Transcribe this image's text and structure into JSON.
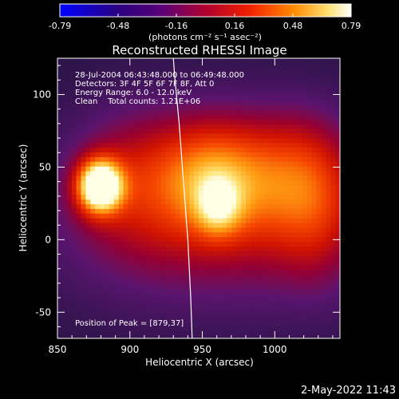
{
  "chart_data": {
    "type": "heatmap",
    "title": "Reconstructed RHESSI Image",
    "xlabel": "Heliocentric X (arcsec)",
    "ylabel": "Heliocentric Y (arcsec)",
    "xlim": [
      850,
      1045
    ],
    "ylim": [
      -68,
      125
    ],
    "x_ticks": [
      850,
      900,
      950,
      1000
    ],
    "y_ticks": [
      -50,
      0,
      50,
      100
    ],
    "info_lines": [
      "28-Jul-2004 06:43:48.000 to 06:49:48.000",
      "Detectors: 3F 4F 5F 6F 7F 8F, Att 0",
      "Energy Range: 6.0 - 12.0 keV",
      "Clean    Total counts: 1.21E+06"
    ],
    "peak_label": "Position of Peak = [879,37]",
    "peak": [
      879,
      37
    ],
    "colorbar": {
      "min": -0.79,
      "max": 0.79,
      "ticks": [
        "-0.79",
        "-0.48",
        "-0.16",
        "0.16",
        "0.48",
        "0.79"
      ],
      "unit": "(photons cm⁻² s⁻¹ asec⁻²)"
    },
    "limb_curve": [
      [
        943,
        -68
      ],
      [
        942,
        -40
      ],
      [
        940,
        0
      ],
      [
        937,
        40
      ],
      [
        934,
        80
      ],
      [
        931,
        112
      ],
      [
        930,
        125
      ]
    ],
    "sources": [
      {
        "x": 879,
        "y": 37,
        "sx": 11,
        "sy": 13,
        "amp": 1.0
      },
      {
        "x": 961,
        "y": 22,
        "sx": 11,
        "sy": 14,
        "amp": 0.32
      },
      {
        "x": 955,
        "y": 45,
        "sx": 24,
        "sy": 28,
        "amp": 0.38
      },
      {
        "x": 1005,
        "y": 45,
        "sx": 32,
        "sy": 32,
        "amp": 0.36
      },
      {
        "x": 905,
        "y": 45,
        "sx": 30,
        "sy": 35,
        "amp": 0.26
      },
      {
        "x": 1030,
        "y": 20,
        "sx": 20,
        "sy": 40,
        "amp": 0.2
      },
      {
        "x": 960,
        "y": 10,
        "sx": 80,
        "sy": 40,
        "amp": 0.14
      }
    ],
    "background_level": 0.25
  },
  "footer": {
    "timestamp": "2-May-2022 11:43"
  },
  "colors": {
    "background": "#000000",
    "text": "#ffffff",
    "limb": "#ffffff"
  }
}
